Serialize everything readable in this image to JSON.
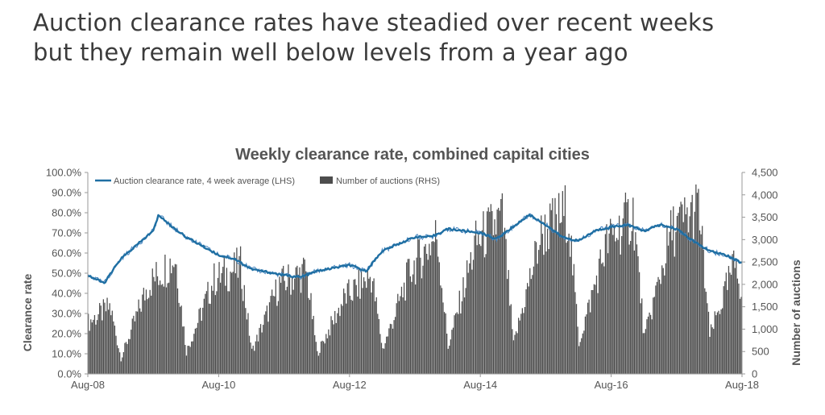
{
  "headline": {
    "line1": "Auction clearance rates have steadied over recent weeks",
    "line2": "but they remain well below levels from a year ago"
  },
  "chart_data": {
    "type": "bar+line",
    "title": "Weekly clearance rate, combined capital cities",
    "ylabel_left": "Clearance rate",
    "ylabel_right": "Number of auctions",
    "ylim_left": [
      0,
      100
    ],
    "ylim_right": [
      0,
      4500
    ],
    "yticks_left": [
      "0.0%",
      "10.0%",
      "20.0%",
      "30.0%",
      "40.0%",
      "50.0%",
      "60.0%",
      "70.0%",
      "80.0%",
      "90.0%",
      "100.0%"
    ],
    "yticks_right": [
      "0",
      "500",
      "1,000",
      "1,500",
      "2,000",
      "2,500",
      "3,000",
      "3,500",
      "4,000",
      "4,500"
    ],
    "xticks": [
      "Aug-08",
      "Aug-10",
      "Aug-12",
      "Aug-14",
      "Aug-16",
      "Aug-18"
    ],
    "legend": [
      "Auction clearance rate, 4 week average (LHS)",
      "Number of auctions (RHS)"
    ],
    "legend_position": "top-left",
    "grid": false,
    "colors": {
      "line": "#1f6fa3",
      "line_thin": "#4a86c0",
      "bars": "#4d4d4d",
      "text": "#555555",
      "axis": "#9a9a9a"
    },
    "x_range": [
      "Aug-08",
      "Aug-18"
    ],
    "clearance_rate_4wk_avg": {
      "x": [
        "Aug-08",
        "Nov-08",
        "Feb-09",
        "Aug-09",
        "Sep-09",
        "Nov-09",
        "Feb-10",
        "Aug-10",
        "Nov-10",
        "Feb-11",
        "Aug-11",
        "Nov-11",
        "Feb-12",
        "Aug-12",
        "Nov-12",
        "Feb-13",
        "Aug-13",
        "Nov-13",
        "Feb-14",
        "Aug-14",
        "Nov-14",
        "Feb-15",
        "May-15",
        "Aug-15",
        "Nov-15",
        "Feb-16",
        "May-16",
        "Aug-16",
        "Nov-16",
        "Feb-17",
        "May-17",
        "Aug-17",
        "Nov-17",
        "Feb-18",
        "May-18",
        "Aug-18"
      ],
      "y": [
        49,
        45,
        57,
        71,
        79,
        74,
        68,
        59,
        57,
        52,
        49,
        48,
        51,
        54,
        51,
        61,
        68,
        68,
        72,
        70,
        67,
        73,
        79,
        74,
        68,
        66,
        71,
        73,
        74,
        71,
        74,
        72,
        66,
        61,
        59,
        55
      ]
    },
    "number_of_auctions": {
      "x": [
        "Aug-08",
        "Dec-08",
        "Feb-09",
        "Jul-09",
        "Dec-09",
        "Feb-10",
        "Jul-10",
        "Dec-10",
        "Feb-11",
        "Jul-11",
        "Dec-11",
        "Feb-12",
        "Jul-12",
        "Dec-12",
        "Feb-13",
        "Jul-13",
        "Dec-13",
        "Feb-14",
        "Jul-14",
        "Dec-14",
        "Feb-15",
        "Jul-15",
        "Dec-15",
        "Feb-16",
        "Jul-16",
        "Dec-16",
        "Feb-17",
        "Jul-17",
        "Dec-17",
        "Feb-18",
        "Jul-18",
        "Aug-18"
      ],
      "y": [
        1150,
        1500,
        350,
        2000,
        2600,
        500,
        2100,
        2400,
        500,
        2000,
        2300,
        450,
        1700,
        2200,
        550,
        2300,
        3100,
        600,
        2900,
        3500,
        650,
        3100,
        3650,
        700,
        2900,
        3600,
        800,
        3200,
        3700,
        850,
        2600,
        1500
      ]
    }
  }
}
